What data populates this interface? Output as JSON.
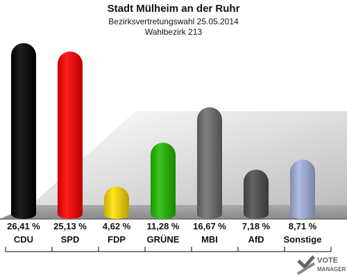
{
  "header": {
    "title": "Stadt Mülheim an der Ruhr",
    "subtitle": "Bezirksvertretungswahl 25.05.2014",
    "district": "Wahlbezirk 213"
  },
  "chart_data": {
    "type": "bar",
    "categories": [
      "CDU",
      "SPD",
      "FDP",
      "GRÜNE",
      "MBI",
      "AfD",
      "Sonstige"
    ],
    "values": [
      26.41,
      25.13,
      4.62,
      11.28,
      16.67,
      7.18,
      8.71
    ],
    "value_labels": [
      "26,41 %",
      "25,13 %",
      "4,62 %",
      "11,28 %",
      "16,67 %",
      "7,18 %",
      "8,71 %"
    ],
    "colors": [
      "#000000",
      "#ff0000",
      "#ffe000",
      "#22bb00",
      "#6e6e6e",
      "#4f4f4f",
      "#a6b4e0"
    ],
    "unit": "%",
    "ylim": [
      0,
      26.41
    ]
  },
  "logo": {
    "line1": "VOTE",
    "line2": "MANAGER"
  }
}
